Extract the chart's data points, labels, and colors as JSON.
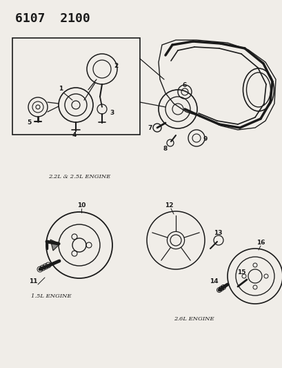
{
  "title": "6107  2100",
  "bg_color": "#f0ede8",
  "line_color": "#1a1a1a",
  "text_color": "#1a1a1a",
  "caption_22_25": "2.2L & 2.5L ENGINE",
  "caption_15": "1.5L ENGINE",
  "caption_26": "2.6L ENGINE",
  "figsize": [
    4.1,
    5.33
  ],
  "dpi": 100
}
